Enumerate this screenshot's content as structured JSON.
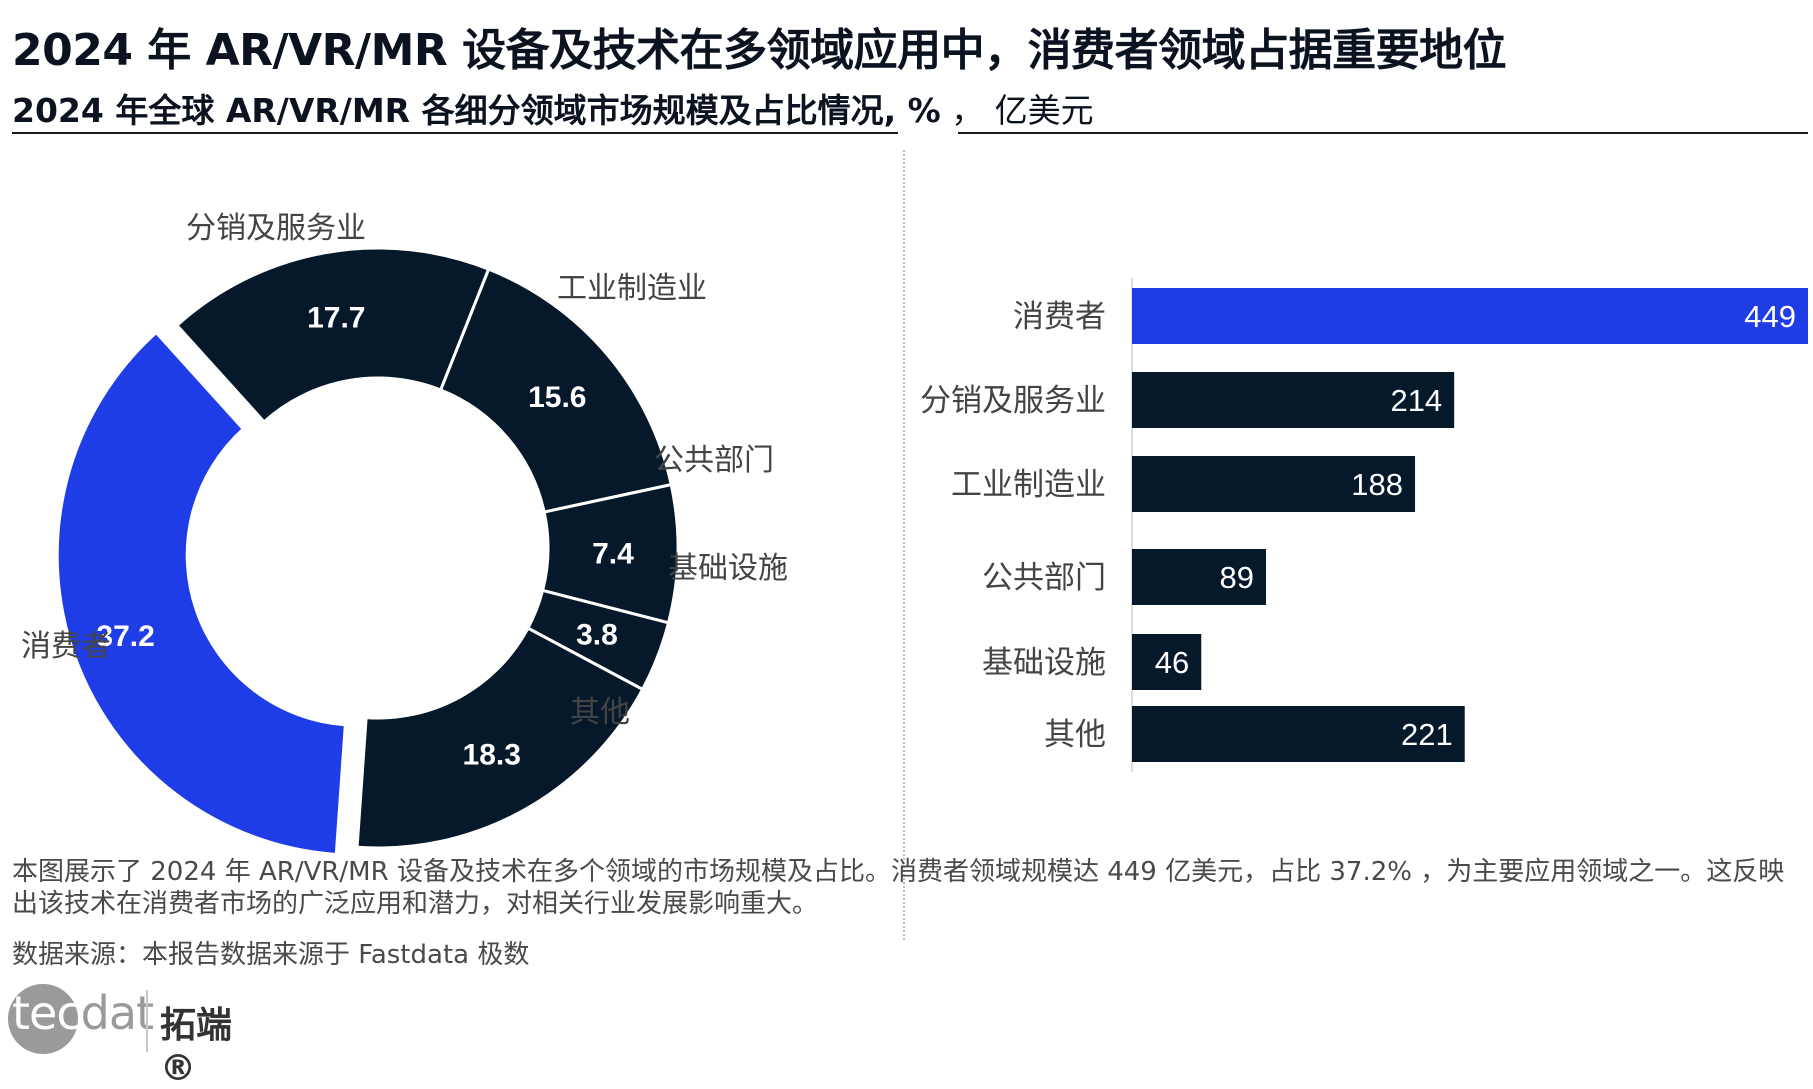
{
  "header": {
    "title": "2024 年 AR/VR/MR 设备及技术在多领域应用中，消费者领域占据重要地位",
    "subtitle_bold": "2024 年全球 AR/VR/MR 各细分领域市场规模及占比情况, %",
    "subtitle_rest": " ，  亿美元"
  },
  "colors": {
    "highlight": "#1f3de6",
    "dark": "#06192a",
    "label": "#444444"
  },
  "chart_data": [
    {
      "type": "pie",
      "variant": "donut",
      "unit": "%",
      "categories": [
        "消费者",
        "分销及服务业",
        "工业制造业",
        "公共部门",
        "基础设施",
        "其他"
      ],
      "values": [
        37.2,
        17.7,
        15.6,
        7.4,
        3.8,
        18.3
      ],
      "value_labels": [
        "37.2",
        "17.7",
        "15.6",
        "7.4",
        "3.8",
        "18.3"
      ],
      "highlight": "消费者"
    },
    {
      "type": "bar",
      "orientation": "horizontal",
      "unit": "亿美元",
      "categories": [
        "消费者",
        "分销及服务业",
        "工业制造业",
        "公共部门",
        "基础设施",
        "其他"
      ],
      "values": [
        449,
        214,
        188,
        89,
        46,
        221
      ],
      "value_labels": [
        "449",
        "214",
        "188",
        "89",
        "46",
        "221"
      ],
      "highlight": "消费者",
      "xlim": [
        0,
        449
      ]
    }
  ],
  "footer": {
    "description": "本图展示了 2024 年 AR/VR/MR 设备及技术在多个领域的市场规模及占比。消费者领域规模达 449 亿美元，占比 37.2% ，为主要应用领域之一。这反映出该技术在消费者市场的广泛应用和潜力，对相关行业发展影响重大。",
    "source": "数据来源：本报告数据来源于 Fastdata 极数",
    "logo_text_a": "tec",
    "logo_text_b": "dat",
    "logo_cn": "拓端®"
  }
}
